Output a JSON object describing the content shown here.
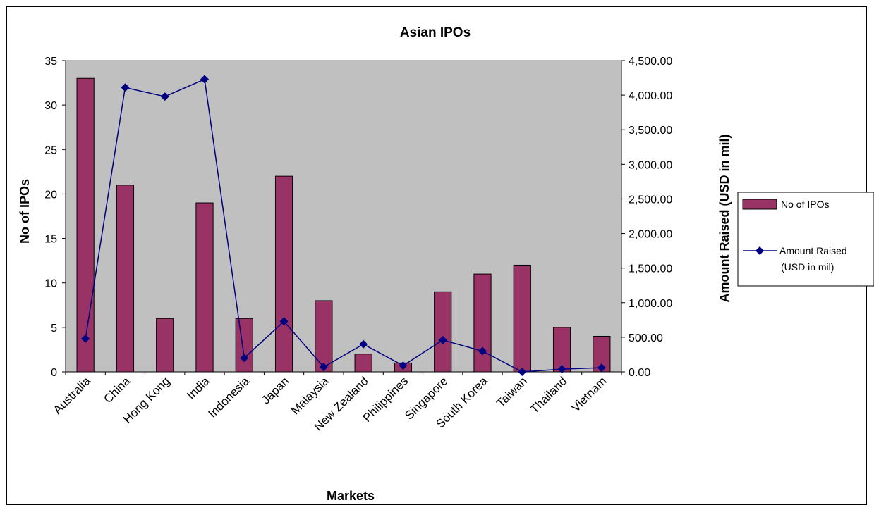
{
  "chart_data": {
    "type": "bar",
    "title": "Asian IPOs",
    "xlabel": "Markets",
    "ylabel": "No of IPOs",
    "y2label": "Amount Raised (USD in mil)",
    "categories": [
      "Australia",
      "China",
      "Hong Kong",
      "India",
      "Indonesia",
      "Japan",
      "Malaysia",
      "New Zealand",
      "Philippines",
      "Singapore",
      "South Korea",
      "Taiwan",
      "Thailand",
      "Vietnam"
    ],
    "ylim": [
      0,
      35
    ],
    "y_ticks": [
      "0",
      "5",
      "10",
      "15",
      "20",
      "25",
      "30",
      "35"
    ],
    "y2lim": [
      0,
      4500
    ],
    "y2_ticks": [
      "0.00",
      "500.00",
      "1,000.00",
      "1,500.00",
      "2,000.00",
      "2,500.00",
      "3,000.00",
      "3,500.00",
      "4,000.00",
      "4,500.00"
    ],
    "grid": false,
    "plot_background": "#c0c0c0",
    "legend_position": "right",
    "series": [
      {
        "name": "No of IPOs",
        "chart_type": "bar",
        "axis": "left",
        "color": "#993366",
        "values": [
          33,
          21,
          6,
          19,
          6,
          22,
          8,
          2,
          1,
          9,
          11,
          12,
          5,
          4
        ]
      },
      {
        "name": "Amount Raised (USD in mil)",
        "legend_lines": [
          "Amount Raised",
          "(USD in mil)"
        ],
        "chart_type": "line",
        "marker": "diamond",
        "axis": "right",
        "color": "#000080",
        "values": [
          480,
          4110,
          3980,
          4230,
          200,
          730,
          70,
          400,
          90,
          460,
          300,
          0,
          40,
          60
        ]
      }
    ]
  }
}
